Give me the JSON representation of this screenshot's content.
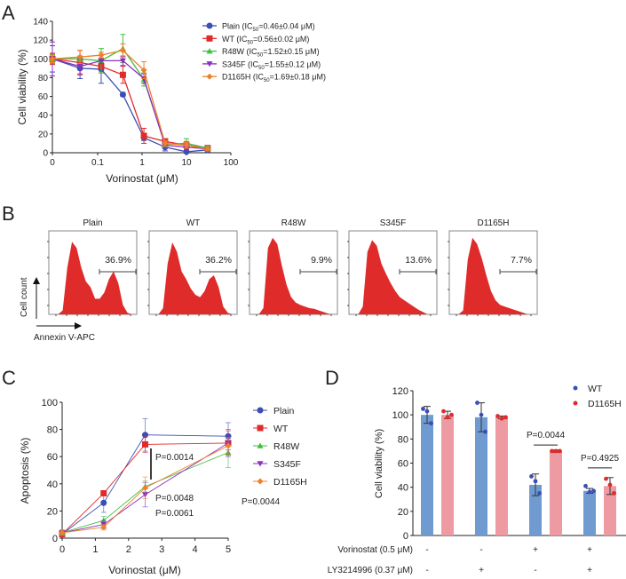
{
  "chart_data": [
    {
      "panel": "A",
      "type": "line",
      "xscale": "log",
      "title": "",
      "xlabel": "Vorinostat (μM)",
      "ylabel": "Cell viability (%)",
      "xticks": [
        "0",
        "0.1",
        "1",
        "10",
        "100"
      ],
      "yticks": [
        0,
        20,
        40,
        60,
        80,
        100,
        120,
        140
      ],
      "ylim": [
        0,
        140
      ],
      "x": [
        0,
        0.04,
        0.12,
        0.37,
        1.1,
        3.3,
        10,
        30
      ],
      "legend_position": "top-right",
      "series": [
        {
          "name": "Plain",
          "legend": "Plain (IC50=0.46±0.04 μM)",
          "label_main": "Plain (IC",
          "label_sub": "50",
          "label_rest": "=0.46±0.04 μM)",
          "color": "#3a4fb5",
          "marker": "circle",
          "values": [
            100,
            90,
            89,
            62,
            16,
            6,
            1,
            3
          ],
          "errors": [
            14,
            11,
            15,
            2,
            3,
            4,
            2,
            2
          ]
        },
        {
          "name": "WT",
          "legend": "WT (IC50=0.56±0.02 μM)",
          "label_main": "WT (IC",
          "label_sub": "50",
          "label_rest": "=0.56±0.02 μM)",
          "color": "#e02b2b",
          "marker": "square",
          "values": [
            100,
            96,
            92,
            83,
            18,
            12,
            8,
            5
          ],
          "errors": [
            6,
            13,
            7,
            9,
            8,
            3,
            4,
            2
          ]
        },
        {
          "name": "R48W",
          "legend": "R48W (IC50=1.52±0.15 μM)",
          "label_main": "R48W (IC",
          "label_sub": "50",
          "label_rest": "=1.52±0.15 μM)",
          "color": "#3fbf3f",
          "marker": "triangle-up",
          "values": [
            100,
            100,
            98,
            111,
            78,
            9,
            10,
            5
          ],
          "errors": [
            5,
            3,
            13,
            15,
            7,
            3,
            5,
            2
          ]
        },
        {
          "name": "S345F",
          "legend": "S345F (IC50=1.55±0.12 μM)",
          "label_main": "S345F (IC",
          "label_sub": "50",
          "label_rest": "=1.55±0.12 μM)",
          "color": "#8b2fbf",
          "marker": "triangle-down",
          "values": [
            100,
            92,
            98,
            98,
            79,
            8,
            6,
            4
          ],
          "errors": [
            18,
            8,
            3,
            5,
            5,
            3,
            3,
            2
          ]
        },
        {
          "name": "D1165H",
          "legend": "D1165H (IC50=1.69±0.18 μM)",
          "label_main": "D1165H (IC",
          "label_sub": "50",
          "label_rest": "=1.69±0.18 μM)",
          "color": "#f07f2a",
          "marker": "diamond",
          "values": [
            100,
            102,
            104,
            109,
            88,
            10,
            8,
            4
          ],
          "errors": [
            4,
            7,
            3,
            7,
            9,
            3,
            3,
            2
          ]
        }
      ]
    },
    {
      "panel": "B",
      "type": "area",
      "title": "",
      "ylabel": "Cell count",
      "xlabel": "Annexin V-APC",
      "color": "#e02b2b",
      "histograms": [
        {
          "name": "Plain",
          "gate_percent": "36.9%"
        },
        {
          "name": "WT",
          "gate_percent": "36.2%"
        },
        {
          "name": "R48W",
          "gate_percent": "9.9%"
        },
        {
          "name": "S345F",
          "gate_percent": "13.6%"
        },
        {
          "name": "D1165H",
          "gate_percent": "7.7%"
        }
      ]
    },
    {
      "panel": "C",
      "type": "line",
      "title": "",
      "xlabel": "Vorinostat (μM)",
      "ylabel": "Apoptosis (%)",
      "xlim": [
        0,
        5
      ],
      "ylim": [
        0,
        100
      ],
      "xticks": [
        0,
        1,
        2,
        3,
        4,
        5
      ],
      "yticks": [
        0,
        20,
        40,
        60,
        80,
        100
      ],
      "x": [
        0,
        1.25,
        2.5,
        5
      ],
      "legend_position": "right",
      "series": [
        {
          "name": "Plain",
          "color": "#3a4fb5",
          "marker": "circle",
          "values": [
            3,
            26,
            76,
            75
          ],
          "errors": [
            2,
            7,
            12,
            10
          ]
        },
        {
          "name": "WT",
          "color": "#e02b2b",
          "marker": "square",
          "values": [
            3,
            33,
            69,
            70
          ],
          "errors": [
            2,
            2,
            6,
            9
          ]
        },
        {
          "name": "R48W",
          "color": "#3fbf3f",
          "marker": "triangle-up",
          "values": [
            4,
            13,
            38,
            63
          ],
          "errors": [
            2,
            3,
            4,
            11
          ]
        },
        {
          "name": "S345F",
          "color": "#8b2fbf",
          "marker": "triangle-down",
          "values": [
            4,
            10,
            32,
            70
          ],
          "errors": [
            2,
            3,
            9,
            10
          ]
        },
        {
          "name": "D1165H",
          "color": "#f07f2a",
          "marker": "diamond",
          "values": [
            4,
            8,
            37,
            68
          ],
          "errors": [
            2,
            2,
            8,
            6
          ]
        }
      ],
      "annotations": [
        {
          "text": "P=0.0014",
          "color": "#3fbf3f"
        },
        {
          "text": "P=0.0048",
          "color": "#8b2fbf"
        },
        {
          "text": "P=0.0061",
          "color": "#f07f2a"
        },
        {
          "text": "P=0.0044",
          "color": "#222222"
        }
      ]
    },
    {
      "panel": "D",
      "type": "bar",
      "title": "",
      "ylabel": "Cell viability (%)",
      "ylim": [
        0,
        120
      ],
      "yticks": [
        0,
        20,
        40,
        60,
        80,
        100,
        120
      ],
      "categories": [
        "1",
        "2",
        "3",
        "4"
      ],
      "conditions": [
        {
          "label": "Vorinostat (0.5 μM)",
          "values": [
            "-",
            "-",
            "+",
            "+"
          ]
        },
        {
          "label": "LY3214996 (0.37 μM)",
          "values": [
            "-",
            "+",
            "-",
            "+"
          ]
        }
      ],
      "legend_position": "top-right",
      "series": [
        {
          "name": "WT",
          "color": "#6f9bd1",
          "dot_color": "#3a4fb5",
          "values": [
            100,
            98,
            42,
            37
          ],
          "errors": [
            7,
            12,
            9,
            2
          ],
          "points": [
            [
              105,
              103,
              93
            ],
            [
              110,
              100,
              86
            ],
            [
              49,
              45,
              35
            ],
            [
              41,
              36,
              37
            ]
          ]
        },
        {
          "name": "D1165H",
          "color": "#ee9aa2",
          "dot_color": "#e02b2b",
          "values": [
            100,
            98,
            70,
            41
          ],
          "errors": [
            3,
            1,
            1,
            7
          ],
          "points": [
            [
              103,
              98,
              100
            ],
            [
              99,
              97,
              98
            ],
            [
              70,
              70,
              70
            ],
            [
              47,
              42,
              35
            ]
          ]
        }
      ],
      "annotations": [
        {
          "text": "P=0.0044",
          "between": "group 3"
        },
        {
          "text": "P=0.4925",
          "between": "group 4"
        }
      ]
    }
  ],
  "panels": {
    "A": "A",
    "B": "B",
    "C": "C",
    "D": "D"
  }
}
